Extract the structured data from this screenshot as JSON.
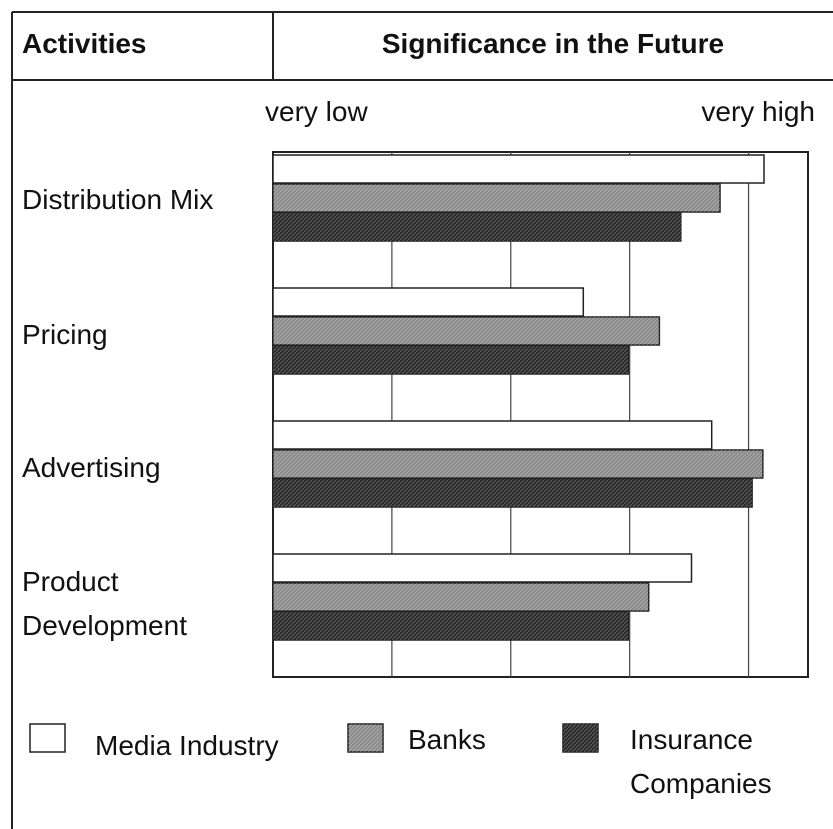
{
  "header": {
    "col1": "Activities",
    "col2": "Significance in the Future"
  },
  "chart_data": {
    "type": "bar",
    "orientation": "horizontal",
    "x_low_label": "very low",
    "x_high_label": "very high",
    "categories": [
      "Distribution Mix",
      "Pricing",
      "Advertising",
      "Product Development"
    ],
    "series": [
      {
        "name": "Media Industry",
        "color": "#ffffff",
        "values": [
          4.13,
          2.61,
          3.69,
          3.52
        ]
      },
      {
        "name": "Banks",
        "color": "#8c8c8c",
        "values": [
          3.76,
          3.25,
          4.12,
          3.16
        ]
      },
      {
        "name": "Insurance Companies",
        "color": "#2b2b2b",
        "values": [
          3.43,
          2.99,
          4.03,
          2.99
        ]
      }
    ],
    "xlim": [
      0,
      4.5
    ],
    "xticks": [
      1,
      2,
      3,
      4
    ],
    "grid": true
  }
}
